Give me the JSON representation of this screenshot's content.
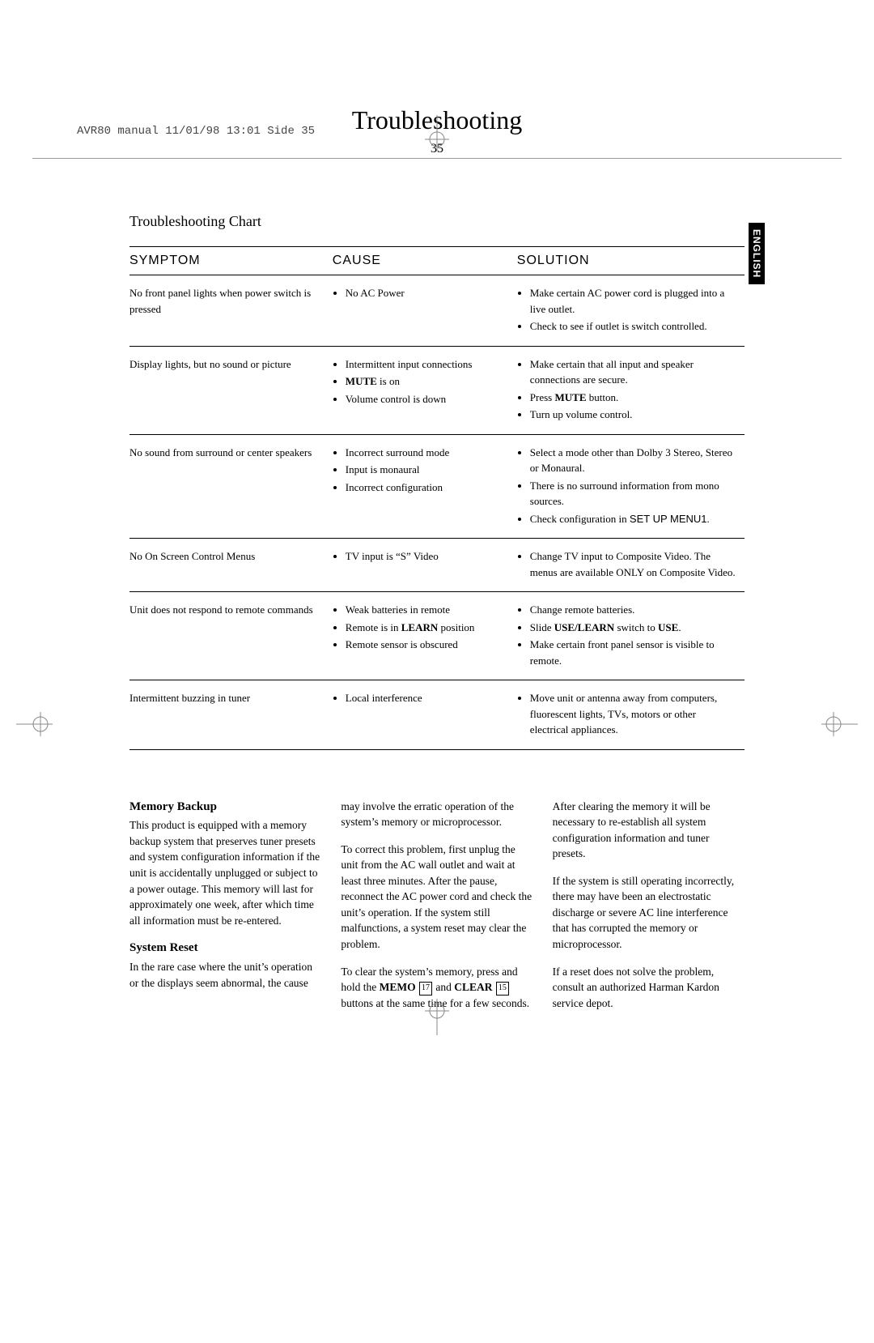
{
  "header_info": "AVR80 manual  11/01/98 13:01  Side 35",
  "title": "Troubleshooting",
  "page_number": "35",
  "language_tab": "ENGLISH",
  "chart_heading": "Troubleshooting Chart",
  "table": {
    "headers": [
      "SYMPTOM",
      "CAUSE",
      "SOLUTION"
    ],
    "rows": [
      {
        "symptom": "No front panel lights when power switch is pressed",
        "causes": [
          "No AC Power"
        ],
        "solutions": [
          "Make certain AC power cord is plugged into a live outlet.",
          "Check to see if outlet is switch controlled."
        ]
      },
      {
        "symptom": "Display lights, but no sound or picture",
        "causes_html": [
          "Intermittent input connections",
          "<span class='bold'>MUTE</span> is on",
          "Volume control is down"
        ],
        "solutions_html": [
          "Make certain that all input and speaker connections are secure.",
          "Press <span class='bold'>MUTE</span> button.",
          "Turn up volume control."
        ]
      },
      {
        "symptom": "No sound from surround or center speakers",
        "causes": [
          "Incorrect surround mode",
          "Input is monaural",
          "Incorrect configuration"
        ],
        "solutions_html": [
          "Select a mode other than Dolby 3 Stereo, Stereo or Monaural.",
          "There is no surround information from mono sources.",
          "Check configuration in <span class='sans'>SET UP MENU1</span>."
        ]
      },
      {
        "symptom": "No On Screen Control Menus",
        "causes": [
          "TV input is “S” Video"
        ],
        "solutions": [
          "Change TV input to Composite Video. The menus are available ONLY on Composite Video."
        ]
      },
      {
        "symptom": "Unit does not respond to remote commands",
        "causes_html": [
          "Weak batteries in remote",
          "Remote is in <span class='bold'>LEARN</span> position",
          "Remote sensor is obscured"
        ],
        "solutions_html": [
          "Change remote batteries.",
          "Slide <span class='bold'>USE/LEARN</span> switch to <span class='bold'>USE</span>.",
          "Make certain front panel sensor is visible to remote."
        ]
      },
      {
        "symptom": "Intermittent buzzing in tuner",
        "causes": [
          "Local interference"
        ],
        "solutions": [
          "Move unit or antenna away from computers, fluorescent lights, TVs, motors or other electrical appliances."
        ]
      }
    ]
  },
  "body": {
    "h1": "Memory Backup",
    "p1": "This product is equipped with a memory backup system that preserves tuner presets and system configuration information if the unit is accidentally unplugged or subject to a power outage. This memory will last for approximately one week, after which time all information must be re-entered.",
    "h2": "System Reset",
    "p2": "In the rare case where the unit’s operation or the displays seem abnormal, the cause may involve the erratic operation of the system’s memory or microprocessor.",
    "p3": "To correct this problem, first unplug the unit from the AC wall outlet and wait at least three minutes. After the pause, reconnect the AC power cord and check the unit’s operation. If the system still malfunctions, a system reset may clear the problem.",
    "p4_html": "To clear the system’s memory, press and hold the <span class='bold'>MEMO</span> <span class='circ-num'>17</span> and <span class='bold'>CLEAR</span> <span class='circ-num'>15</span> buttons at the same time for a few seconds. After clearing the memory it will be necessary to re-establish all system configuration information and tuner presets.",
    "p5": "If the system is still operating incorrectly, there may have been an electrostatic discharge or severe AC line interference that has corrupted the memory or microprocessor.",
    "p6": "If a reset does not solve the problem, consult an authorized Harman Kardon service depot."
  }
}
